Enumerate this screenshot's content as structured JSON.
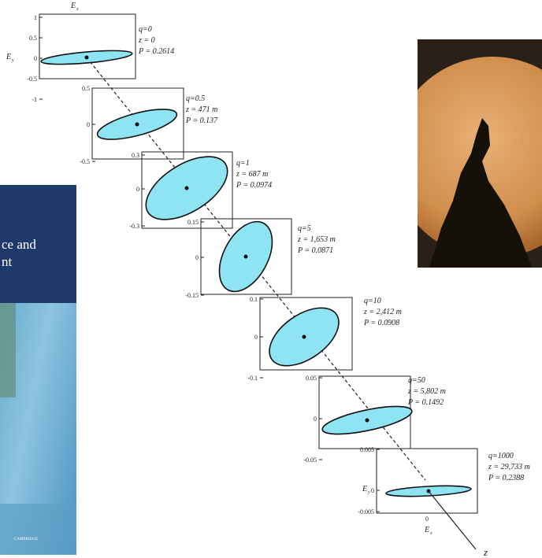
{
  "figure": {
    "axis_label": "z",
    "ex_label": "E",
    "ex_sub": "x",
    "ey_label": "E",
    "ey_sub": "y",
    "panels": [
      {
        "q": "q=0",
        "z": "z = 0",
        "P": "P = 0.2614",
        "ticks": [
          "1",
          "0.5",
          "0",
          "-0.5",
          "-1"
        ]
      },
      {
        "q": "q=0.5",
        "z": "z = 471 m",
        "P": "P = 0.137",
        "ticks": [
          "0.5",
          "0",
          "-0.5"
        ]
      },
      {
        "q": "q=1",
        "z": "z = 687 m",
        "P": "P = 0.0974",
        "ticks": [
          "0.3",
          "0",
          "-0.3"
        ]
      },
      {
        "q": "q=5",
        "z": "z = 1,653 m",
        "P": "P = 0.0871",
        "ticks": [
          "0.15",
          "0",
          "-0.15"
        ]
      },
      {
        "q": "q=10",
        "z": "z = 2,412 m",
        "P": "P = 0.0908",
        "ticks": [
          "0.1",
          "0",
          "-0.1"
        ]
      },
      {
        "q": "q=50",
        "z": "z = 5,802 m",
        "P": "P = 0.1492",
        "ticks": [
          "0.05",
          "0",
          "-0.05"
        ]
      },
      {
        "q": "q=1000",
        "z": "z = 29,733 m",
        "P": "P = 0.2388",
        "ticks": [
          "0.005",
          "0",
          "-0.005"
        ],
        "xtick": "0"
      }
    ]
  },
  "book_cover": {
    "line1": "ce and",
    "line2": "nt",
    "publisher": "CAMBRIDGE"
  }
}
